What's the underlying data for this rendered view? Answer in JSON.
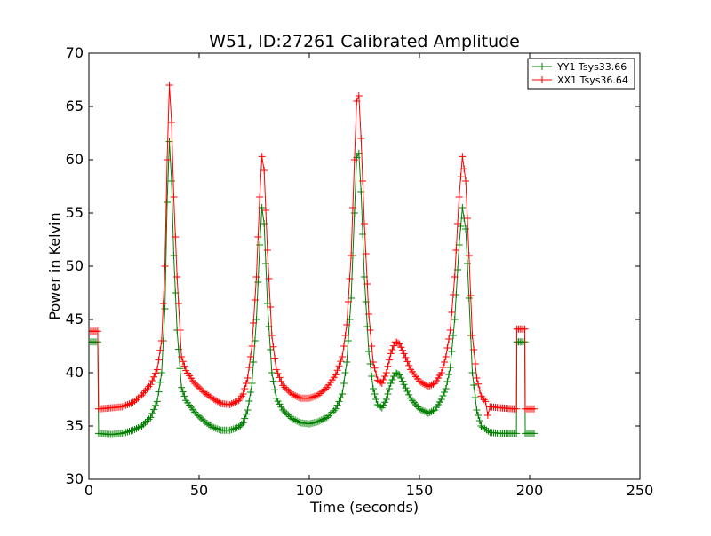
{
  "chart_data": {
    "type": "line",
    "title": "W51, ID:27261 Calibrated Amplitude",
    "xlabel": "Time (seconds)",
    "ylabel": "Power in Kelvin",
    "xlim": [
      0,
      250
    ],
    "ylim": [
      30,
      70
    ],
    "xticks": [
      "0",
      "50",
      "100",
      "150",
      "200",
      "250"
    ],
    "yticks": [
      "30",
      "35",
      "40",
      "45",
      "50",
      "55",
      "60",
      "65",
      "70"
    ],
    "grid": false,
    "legend_position": "top-right",
    "marker": "plus",
    "series": [
      {
        "name": "YY1 Tsys33.66",
        "color": "#008000",
        "points": [
          [
            0,
            42.9
          ],
          [
            4,
            42.9
          ],
          [
            4.4,
            34.3
          ],
          [
            10,
            34.2
          ],
          [
            15,
            34.3
          ],
          [
            20,
            34.6
          ],
          [
            24,
            35.0
          ],
          [
            28,
            35.8
          ],
          [
            31,
            37.3
          ],
          [
            33,
            40.0
          ],
          [
            34.5,
            46.0
          ],
          [
            35.5,
            56.0
          ],
          [
            36.5,
            61.7
          ],
          [
            37.5,
            58.0
          ],
          [
            38.5,
            51.0
          ],
          [
            40,
            44.0
          ],
          [
            42,
            38.6
          ],
          [
            44,
            37.4
          ],
          [
            48,
            36.3
          ],
          [
            52,
            35.5
          ],
          [
            56,
            34.9
          ],
          [
            60,
            34.6
          ],
          [
            64,
            34.6
          ],
          [
            68,
            34.9
          ],
          [
            70,
            35.3
          ],
          [
            72,
            36.5
          ],
          [
            74,
            39.0
          ],
          [
            76,
            45.0
          ],
          [
            77.5,
            52.0
          ],
          [
            78.5,
            55.5
          ],
          [
            79.5,
            54.0
          ],
          [
            81,
            46.5
          ],
          [
            83,
            40.0
          ],
          [
            85,
            37.6
          ],
          [
            88,
            36.5
          ],
          [
            92,
            35.7
          ],
          [
            96,
            35.3
          ],
          [
            100,
            35.2
          ],
          [
            104,
            35.4
          ],
          [
            108,
            35.8
          ],
          [
            112,
            36.6
          ],
          [
            115,
            38.0
          ],
          [
            117,
            41.0
          ],
          [
            119,
            47.0
          ],
          [
            120.5,
            55.0
          ],
          [
            121.5,
            60.2
          ],
          [
            122.5,
            60.6
          ],
          [
            123.5,
            57.0
          ],
          [
            125,
            49.0
          ],
          [
            127,
            42.0
          ],
          [
            129,
            38.5
          ],
          [
            131,
            37.0
          ],
          [
            133,
            36.7
          ],
          [
            135,
            37.5
          ],
          [
            137,
            39.0
          ],
          [
            139,
            40.0
          ],
          [
            141,
            39.8
          ],
          [
            143,
            38.9
          ],
          [
            146,
            37.6
          ],
          [
            150,
            36.6
          ],
          [
            154,
            36.2
          ],
          [
            157,
            36.5
          ],
          [
            160,
            37.5
          ],
          [
            162,
            38.5
          ],
          [
            164,
            40.5
          ],
          [
            166,
            45.0
          ],
          [
            168,
            52.0
          ],
          [
            169.5,
            55.5
          ],
          [
            171,
            53.5
          ],
          [
            172.5,
            47.0
          ],
          [
            174,
            40.0
          ],
          [
            176,
            36.5
          ],
          [
            178,
            35.0
          ],
          [
            182,
            34.4
          ],
          [
            187,
            34.3
          ],
          [
            193,
            34.3
          ],
          [
            194,
            34.3
          ],
          [
            194.2,
            42.9
          ],
          [
            197.8,
            42.9
          ],
          [
            198,
            34.3
          ],
          [
            202,
            34.3
          ]
        ]
      },
      {
        "name": "XX1 Tsys36.64",
        "color": "#ff0000",
        "points": [
          [
            0,
            43.9
          ],
          [
            4,
            43.9
          ],
          [
            4.4,
            36.6
          ],
          [
            10,
            36.7
          ],
          [
            15,
            36.8
          ],
          [
            20,
            37.2
          ],
          [
            24,
            37.9
          ],
          [
            28,
            38.9
          ],
          [
            31,
            40.3
          ],
          [
            33,
            43.0
          ],
          [
            34.5,
            50.0
          ],
          [
            35.5,
            60.0
          ],
          [
            36.5,
            67.0
          ],
          [
            37.5,
            63.5
          ],
          [
            38.5,
            56.5
          ],
          [
            40,
            49.0
          ],
          [
            42,
            41.5
          ],
          [
            44,
            40.2
          ],
          [
            48,
            39.0
          ],
          [
            52,
            38.2
          ],
          [
            56,
            37.6
          ],
          [
            60,
            37.1
          ],
          [
            64,
            37.0
          ],
          [
            68,
            37.4
          ],
          [
            70,
            38.0
          ],
          [
            72,
            39.5
          ],
          [
            74,
            42.5
          ],
          [
            76,
            49.0
          ],
          [
            77.5,
            56.5
          ],
          [
            78.5,
            60.3
          ],
          [
            79.5,
            59.0
          ],
          [
            81,
            51.5
          ],
          [
            83,
            43.5
          ],
          [
            85,
            40.3
          ],
          [
            88,
            38.8
          ],
          [
            92,
            38.0
          ],
          [
            96,
            37.6
          ],
          [
            100,
            37.6
          ],
          [
            104,
            37.9
          ],
          [
            108,
            38.6
          ],
          [
            112,
            39.8
          ],
          [
            115,
            41.5
          ],
          [
            117,
            44.5
          ],
          [
            119,
            51.0
          ],
          [
            120.5,
            60.0
          ],
          [
            121.5,
            65.5
          ],
          [
            122.5,
            66.0
          ],
          [
            123.5,
            62.0
          ],
          [
            125,
            54.0
          ],
          [
            127,
            45.5
          ],
          [
            129,
            41.0
          ],
          [
            131,
            39.3
          ],
          [
            133,
            39.0
          ],
          [
            135,
            40.0
          ],
          [
            137,
            41.8
          ],
          [
            139,
            42.9
          ],
          [
            141,
            42.7
          ],
          [
            143,
            41.8
          ],
          [
            146,
            40.3
          ],
          [
            150,
            39.2
          ],
          [
            154,
            38.7
          ],
          [
            157,
            39.0
          ],
          [
            160,
            40.0
          ],
          [
            162,
            41.5
          ],
          [
            164,
            44.0
          ],
          [
            166,
            49.0
          ],
          [
            168,
            56.5
          ],
          [
            169.5,
            60.3
          ],
          [
            171,
            58.0
          ],
          [
            172.5,
            51.0
          ],
          [
            174,
            43.5
          ],
          [
            176,
            39.5
          ],
          [
            178,
            37.8
          ],
          [
            180,
            37.3
          ],
          [
            181,
            36.0
          ],
          [
            182,
            36.8
          ],
          [
            187,
            36.7
          ],
          [
            193,
            36.6
          ],
          [
            194,
            36.6
          ],
          [
            194.2,
            44.1
          ],
          [
            197.8,
            44.1
          ],
          [
            198,
            36.6
          ],
          [
            202,
            36.6
          ]
        ]
      }
    ]
  }
}
